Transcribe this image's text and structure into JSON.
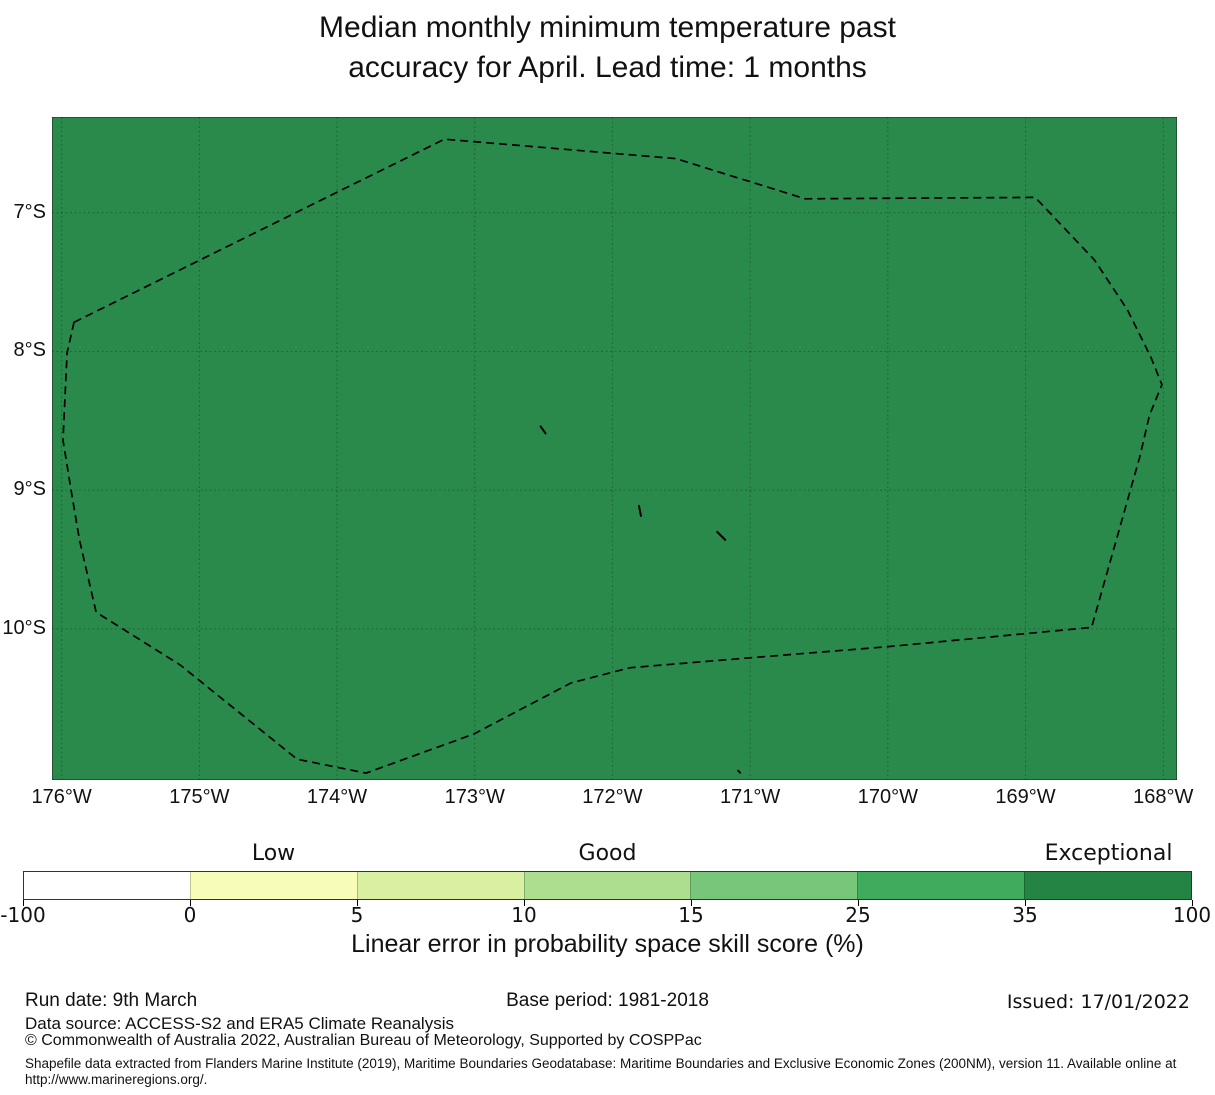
{
  "chart_data": {
    "type": "map",
    "title_lines": [
      "Median monthly minimum temperature past",
      "accuracy for April. Lead time: 1 months"
    ],
    "map": {
      "fill_color": "#2a8a4b",
      "grid": true,
      "gridline_color": "rgba(0,0,0,0.25)",
      "boundary_line_color": "#000000",
      "lon_axis": {
        "unit": "°W",
        "tick_labels": [
          "176°W",
          "175°W",
          "174°W",
          "173°W",
          "172°W",
          "171°W",
          "170°W",
          "169°W",
          "168°W"
        ],
        "tick_values": [
          176,
          175,
          174,
          173,
          172,
          171,
          170,
          169,
          168
        ],
        "range_west_to_east": [
          176.07,
          167.9
        ]
      },
      "lat_axis": {
        "unit": "°S",
        "tick_labels": [
          "7°S",
          "8°S",
          "9°S",
          "10°S"
        ],
        "tick_values": [
          7,
          8,
          9,
          10
        ],
        "range_north_to_south": [
          6.31,
          11.09
        ]
      },
      "dashed_boundary_lon_lat": [
        [
          175.91,
          7.79
        ],
        [
          173.22,
          6.47
        ],
        [
          171.54,
          6.61
        ],
        [
          170.6,
          6.9
        ],
        [
          168.93,
          6.89
        ],
        [
          168.5,
          7.34
        ],
        [
          168.26,
          7.7
        ],
        [
          168.09,
          8.04
        ],
        [
          168.01,
          8.24
        ],
        [
          168.1,
          8.46
        ],
        [
          168.17,
          8.76
        ],
        [
          168.52,
          9.99
        ],
        [
          170.01,
          10.13
        ],
        [
          171.01,
          10.21
        ],
        [
          171.87,
          10.28
        ],
        [
          172.3,
          10.39
        ],
        [
          173.01,
          10.76
        ],
        [
          173.79,
          11.04
        ],
        [
          174.29,
          10.94
        ],
        [
          175.14,
          10.26
        ],
        [
          175.75,
          9.88
        ],
        [
          175.87,
          9.36
        ],
        [
          175.93,
          9.01
        ],
        [
          175.99,
          8.64
        ],
        [
          175.96,
          8.01
        ]
      ],
      "island_marks_lon_lat": [
        {
          "lon": 172.5,
          "lat": 8.57,
          "seg": [
            -3,
            -4,
            2,
            3
          ]
        },
        {
          "lon": 171.8,
          "lat": 9.15,
          "seg": [
            -1,
            -5,
            1,
            5
          ]
        },
        {
          "lon": 171.21,
          "lat": 9.33,
          "seg": [
            -4,
            -4,
            4,
            4
          ]
        },
        {
          "lon": 171.08,
          "lat": 11.03,
          "seg": [
            -1,
            -1,
            1,
            1
          ]
        }
      ]
    },
    "colorbar": {
      "tick_labels": [
        "-100",
        "0",
        "5",
        "10",
        "15",
        "25",
        "35",
        "100"
      ],
      "segment_colors": [
        "#ffffff",
        "#f7fcb9",
        "#d9f0a3",
        "#addd8e",
        "#78c679",
        "#41ab5d",
        "#238443"
      ],
      "category_labels": [
        {
          "label": "Low",
          "center_segment": 1.5
        },
        {
          "label": "Good",
          "center_segment": 3.5
        },
        {
          "label": "Exceptional",
          "center_segment": 6.5
        }
      ],
      "axis_label": "Linear error in probability space skill score (%)"
    }
  },
  "footer": {
    "run_date": "Run date: 9th March",
    "base_period": "Base period: 1981-2018",
    "issued": "Issued: 17/01/2022",
    "data_source": "Data source: ACCESS-S2 and ERA5 Climate Reanalysis",
    "copyright": "© Commonwealth of Australia 2022, Australian Bureau of Meteorology, Supported by COSPPac",
    "shapefile_note": "Shapefile data extracted from Flanders Marine Institute (2019), Maritime Boundaries Geodatabase: Maritime Boundaries and Exclusive Economic Zones (200NM), version 11. Available online at",
    "shapefile_url": "http://www.marineregions.org/."
  }
}
